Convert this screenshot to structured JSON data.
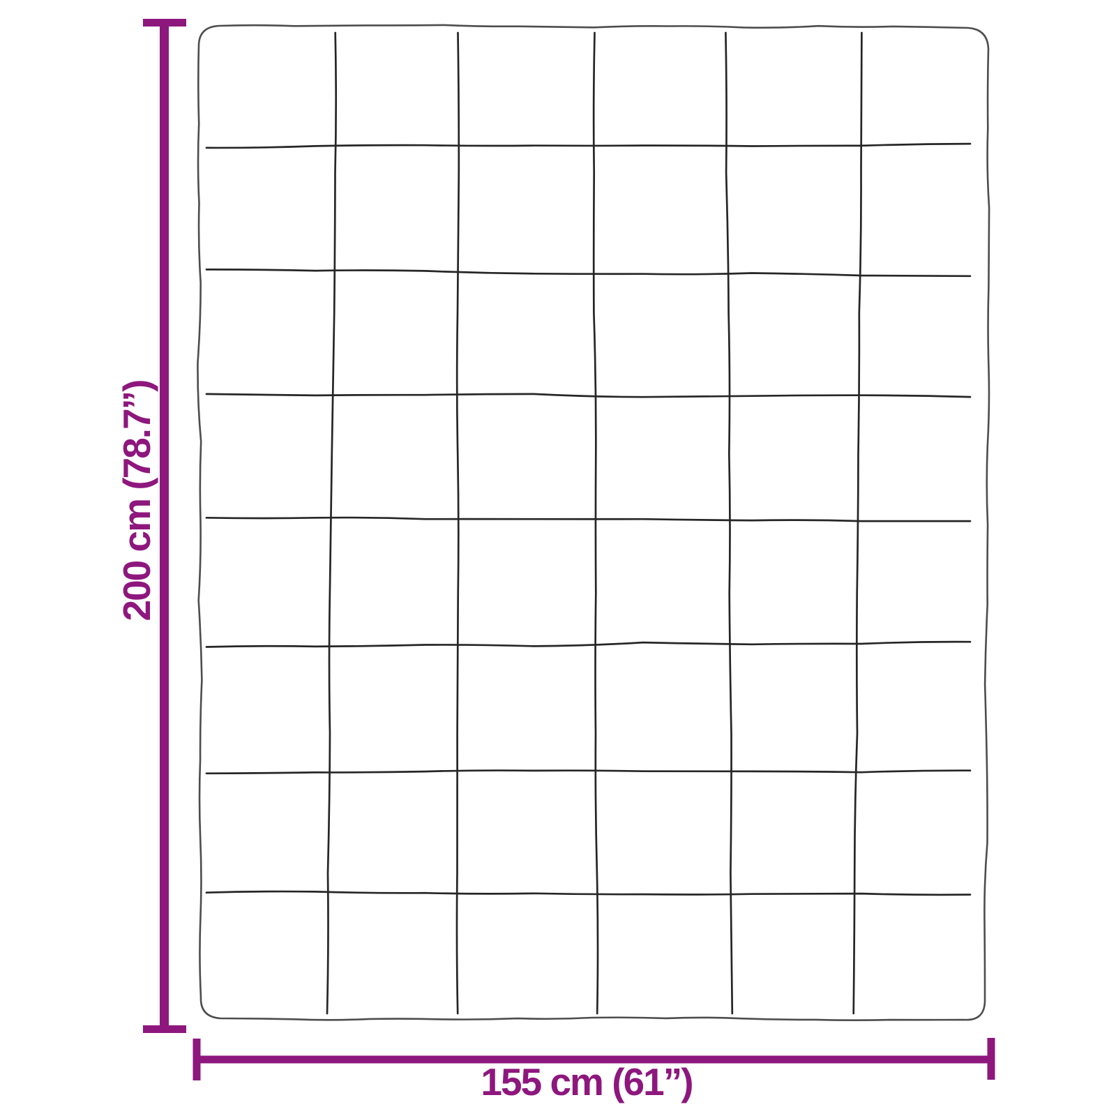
{
  "diagram": {
    "subject": "quilted blanket top view with hand-drawn stitched grid pattern",
    "grid": {
      "rows": 8,
      "columns": 6
    }
  },
  "dimensions": {
    "height": {
      "label": "200 cm (78.7”)",
      "cm": "200",
      "inches": "78.7"
    },
    "width": {
      "label": "155 cm (61”)",
      "cm": "155",
      "inches": "61"
    }
  },
  "colors": {
    "dimension_accent": "#8E177E",
    "blanket_outline": "#4d4d4d",
    "stitch_line": "#262626",
    "background": "#ffffff"
  }
}
